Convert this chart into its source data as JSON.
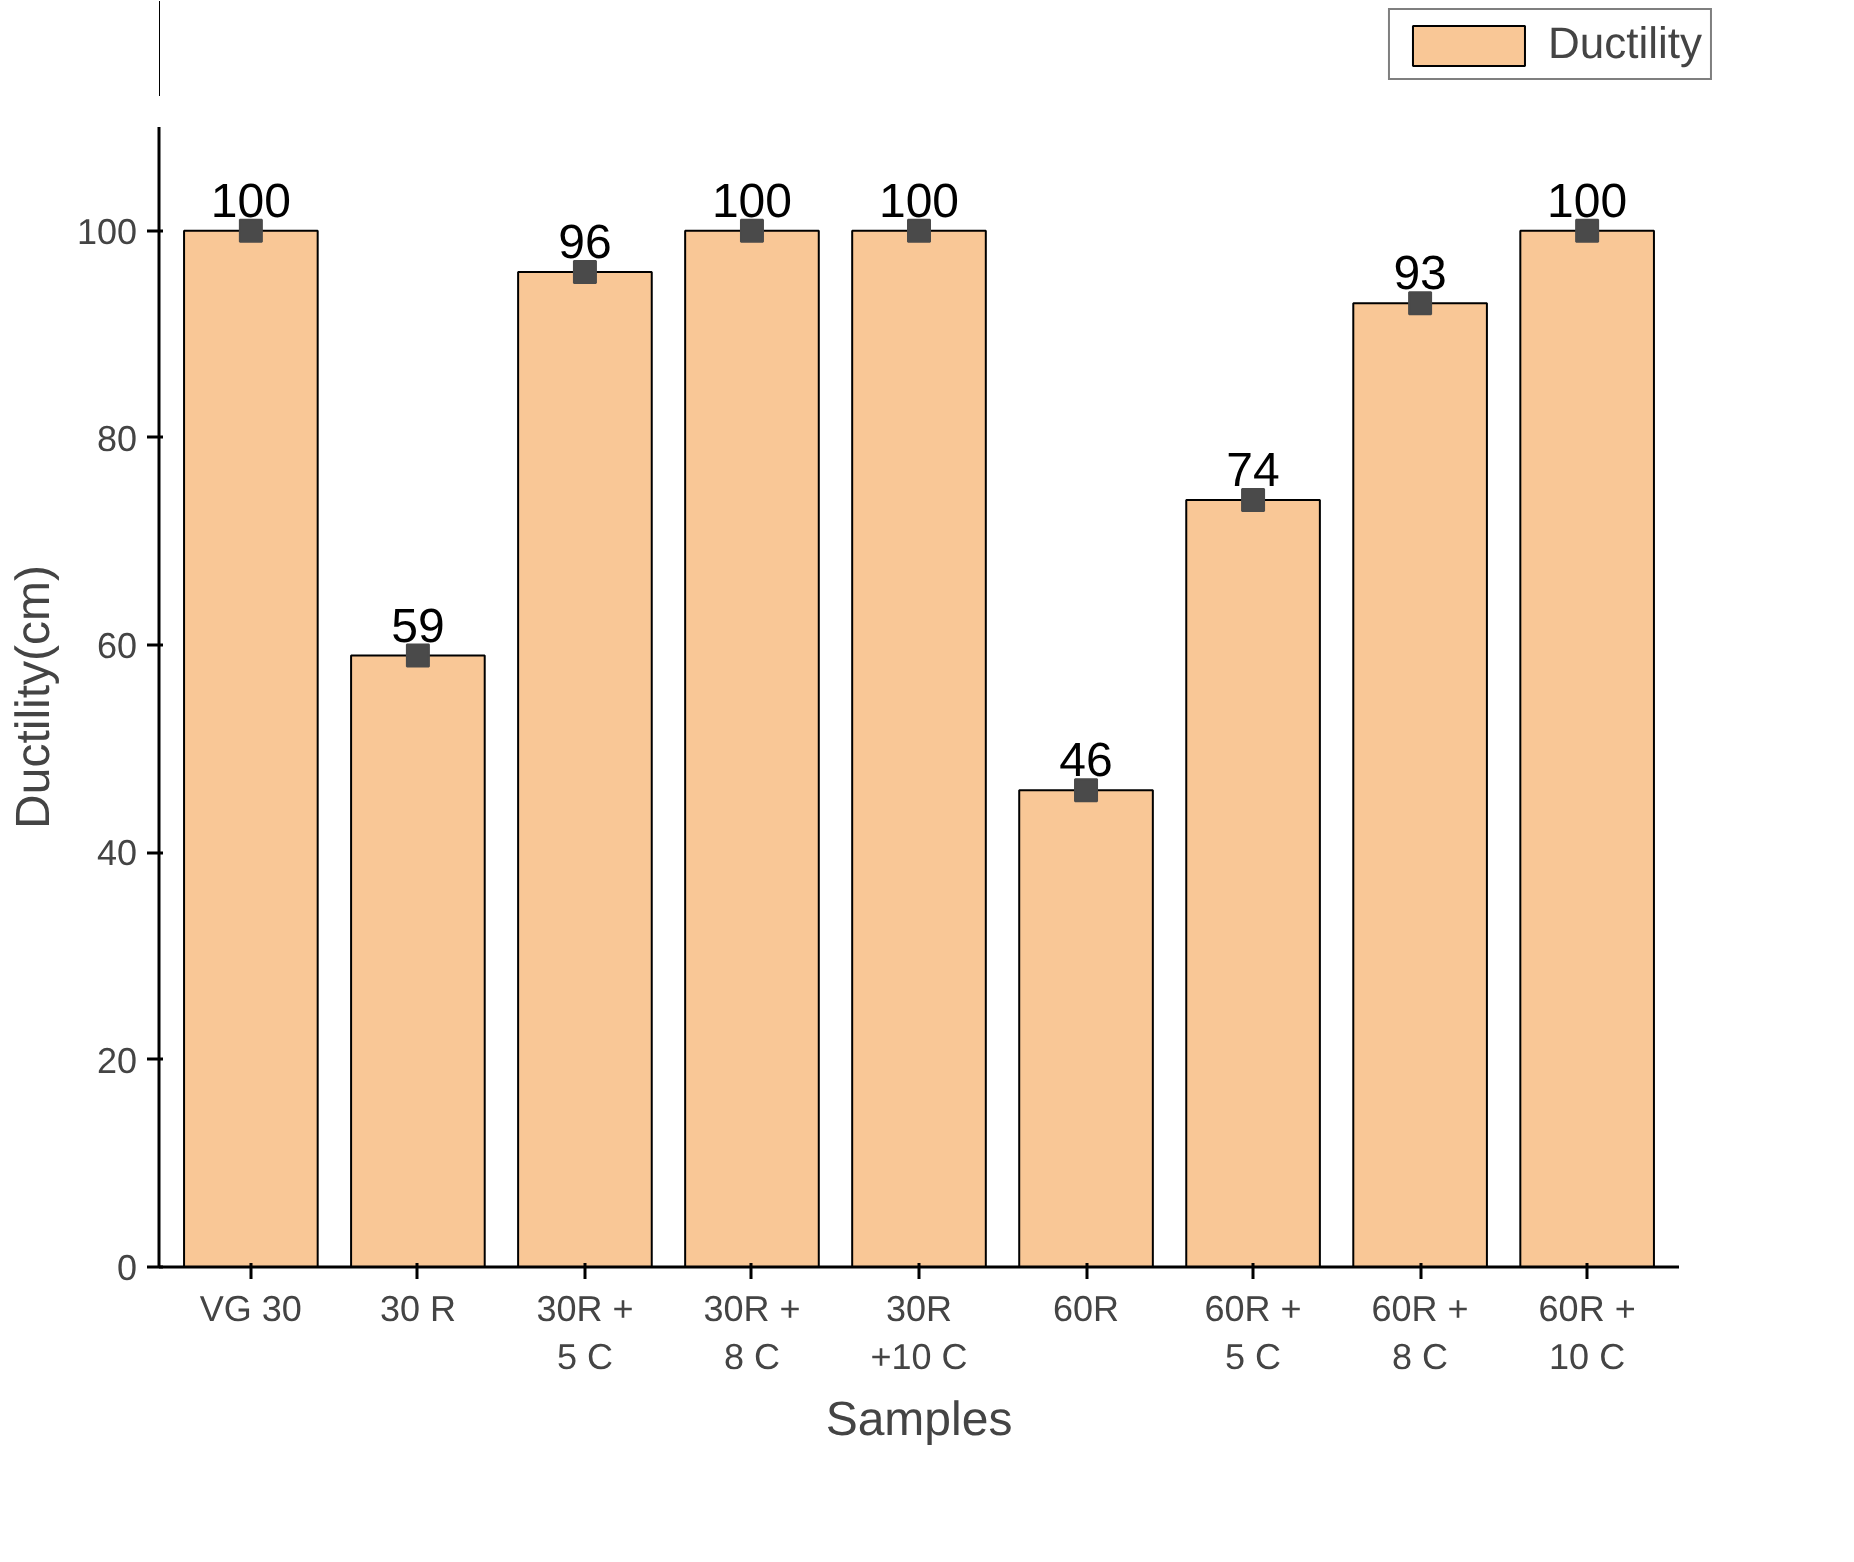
{
  "chart_data": {
    "type": "bar",
    "xlabel": "Samples",
    "ylabel": "Ductility(cm)",
    "categories": [
      "VG 30",
      "30 R",
      "30R +\n5 C",
      "30R +\n8 C",
      "30R\n+10 C",
      "60R",
      "60R +\n5 C",
      "60R +\n8 C",
      "60R +\n10 C"
    ],
    "series": [
      {
        "name": "Ductility",
        "color": "#f9c796",
        "values": [
          100,
          59,
          96,
          100,
          100,
          46,
          74,
          93,
          100
        ],
        "value_labels": [
          "100",
          "59",
          "96",
          "100",
          "100",
          "46",
          "74",
          "93",
          "100"
        ]
      },
      {
        "type": "scatter",
        "x": [
          "VG 30",
          "30 R",
          "30R +\n5 C",
          "30R +\n8 C",
          "30R\n+10 C",
          "60R",
          "60R +\n5 C",
          "60R +\n8 C",
          "60R +\n10 C"
        ],
        "color": "#4a4a4a",
        "values": [
          100,
          59,
          96,
          100,
          100,
          46,
          74,
          93,
          100
        ]
      }
    ],
    "marker": "square",
    "ylim": [
      0,
      110
    ],
    "yticks": [
      0,
      20,
      40,
      60,
      80,
      100
    ],
    "legend": "top right",
    "grid": false
  }
}
